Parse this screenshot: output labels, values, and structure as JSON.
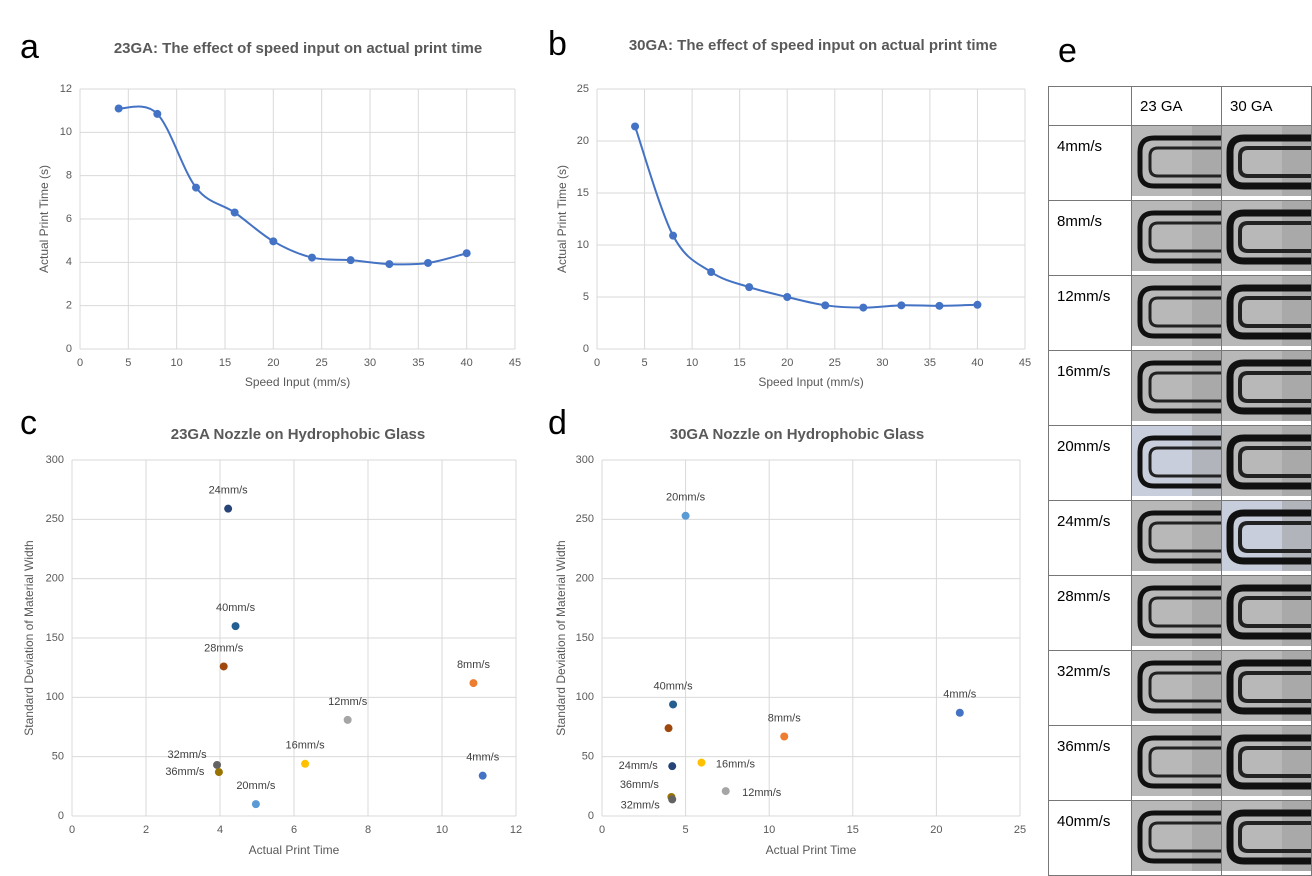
{
  "chart_data": [
    {
      "type": "line",
      "label": "a",
      "title": "23GA: The effect of speed input on actual print time",
      "x_label": "Speed Input (mm/s)",
      "y_label": "Actual Print Time (s)",
      "x": [
        4,
        8,
        12,
        16,
        20,
        24,
        28,
        32,
        36,
        40
      ],
      "values": [
        11.1,
        10.85,
        7.45,
        6.3,
        4.97,
        4.22,
        4.1,
        3.92,
        3.97,
        4.42
      ],
      "color": "#4472c4",
      "smooth": true,
      "grid": true,
      "xlim": [
        0,
        45
      ],
      "xticks": [
        0,
        5,
        10,
        15,
        20,
        25,
        30,
        35,
        40,
        45
      ],
      "ylim": [
        0,
        12
      ],
      "yticks": [
        0,
        2,
        4,
        6,
        8,
        10,
        12
      ]
    },
    {
      "type": "line",
      "label": "b",
      "title": "30GA: The effect of speed input on actual print time",
      "x_label": "Speed Input (mm/s)",
      "y_label": "Actual Print Time (s)",
      "x": [
        4,
        8,
        12,
        16,
        20,
        24,
        28,
        32,
        36,
        40
      ],
      "values": [
        21.4,
        10.9,
        7.4,
        5.95,
        5.0,
        4.2,
        3.98,
        4.2,
        4.15,
        4.25
      ],
      "color": "#4472c4",
      "smooth": true,
      "grid": true,
      "xlim": [
        0,
        45
      ],
      "xticks": [
        0,
        5,
        10,
        15,
        20,
        25,
        30,
        35,
        40,
        45
      ],
      "ylim": [
        0,
        25
      ],
      "yticks": [
        0,
        5,
        10,
        15,
        20,
        25
      ]
    },
    {
      "type": "scatter",
      "label": "c",
      "title": "23GA Nozzle on Hydrophobic Glass",
      "x_label": "Actual Print Time",
      "y_label": "Standard Deviation of Material Width",
      "grid": true,
      "xlim": [
        0,
        12
      ],
      "xticks": [
        0,
        2,
        4,
        6,
        8,
        10,
        12
      ],
      "ylim": [
        0,
        300
      ],
      "yticks": [
        0,
        50,
        100,
        150,
        200,
        250,
        300
      ],
      "series": [
        {
          "name": "24mm/s",
          "color": "#264478",
          "x": [
            4.22
          ],
          "values": [
            259
          ]
        },
        {
          "name": "40mm/s",
          "color": "#255e91",
          "x": [
            4.42
          ],
          "values": [
            160
          ]
        },
        {
          "name": "28mm/s",
          "color": "#9e480e",
          "x": [
            4.1
          ],
          "values": [
            126
          ]
        },
        {
          "name": "8mm/s",
          "color": "#ed7d31",
          "x": [
            10.85
          ],
          "values": [
            112
          ]
        },
        {
          "name": "12mm/s",
          "color": "#a5a5a5",
          "x": [
            7.45
          ],
          "values": [
            81
          ]
        },
        {
          "name": "32mm/s",
          "color": "#636363",
          "x": [
            3.92
          ],
          "values": [
            43
          ]
        },
        {
          "name": "16mm/s",
          "color": "#ffc000",
          "x": [
            6.3
          ],
          "values": [
            44
          ]
        },
        {
          "name": "36mm/s",
          "color": "#997300",
          "x": [
            3.97
          ],
          "values": [
            37
          ]
        },
        {
          "name": "4mm/s",
          "color": "#4472c4",
          "x": [
            11.1
          ],
          "values": [
            34
          ]
        },
        {
          "name": "20mm/s",
          "color": "#5b9bd5",
          "x": [
            4.97
          ],
          "values": [
            10
          ]
        }
      ]
    },
    {
      "type": "scatter",
      "label": "d",
      "title": "30GA Nozzle on Hydrophobic Glass",
      "x_label": "Actual Print Time",
      "y_label": "Standard Deviation of Material Width",
      "grid": true,
      "xlim": [
        0,
        25
      ],
      "xticks": [
        0,
        5,
        10,
        15,
        20,
        25
      ],
      "ylim": [
        0,
        300
      ],
      "yticks": [
        0,
        50,
        100,
        150,
        200,
        250,
        300
      ],
      "series": [
        {
          "name": "20mm/s",
          "color": "#5b9bd5",
          "x": [
            5.0
          ],
          "values": [
            253
          ]
        },
        {
          "name": "40mm/s",
          "color": "#255e91",
          "x": [
            4.25
          ],
          "values": [
            94
          ]
        },
        {
          "name": "4mm/s",
          "color": "#4472c4",
          "x": [
            21.4
          ],
          "values": [
            87
          ]
        },
        {
          "name": null,
          "color": "#9e480e",
          "x": [
            3.98
          ],
          "values": [
            74
          ]
        },
        {
          "name": "8mm/s",
          "color": "#ed7d31",
          "x": [
            10.9
          ],
          "values": [
            67
          ]
        },
        {
          "name": "24mm/s",
          "color": "#264478",
          "x": [
            4.2
          ],
          "values": [
            42
          ]
        },
        {
          "name": "16mm/s",
          "color": "#ffc000",
          "x": [
            5.95
          ],
          "values": [
            45
          ]
        },
        {
          "name": "12mm/s",
          "color": "#a5a5a5",
          "x": [
            7.4
          ],
          "values": [
            21
          ]
        },
        {
          "name": "36mm/s",
          "color": "#997300",
          "x": [
            4.15
          ],
          "values": [
            16
          ]
        },
        {
          "name": "32mm/s",
          "color": "#636363",
          "x": [
            4.2
          ],
          "values": [
            14
          ]
        }
      ]
    }
  ],
  "table": {
    "label": "e",
    "columns": [
      "23 GA",
      "30 GA"
    ],
    "rows": [
      "4mm/s",
      "8mm/s",
      "12mm/s",
      "16mm/s",
      "20mm/s",
      "24mm/s",
      "28mm/s",
      "32mm/s",
      "36mm/s",
      "40mm/s"
    ]
  }
}
